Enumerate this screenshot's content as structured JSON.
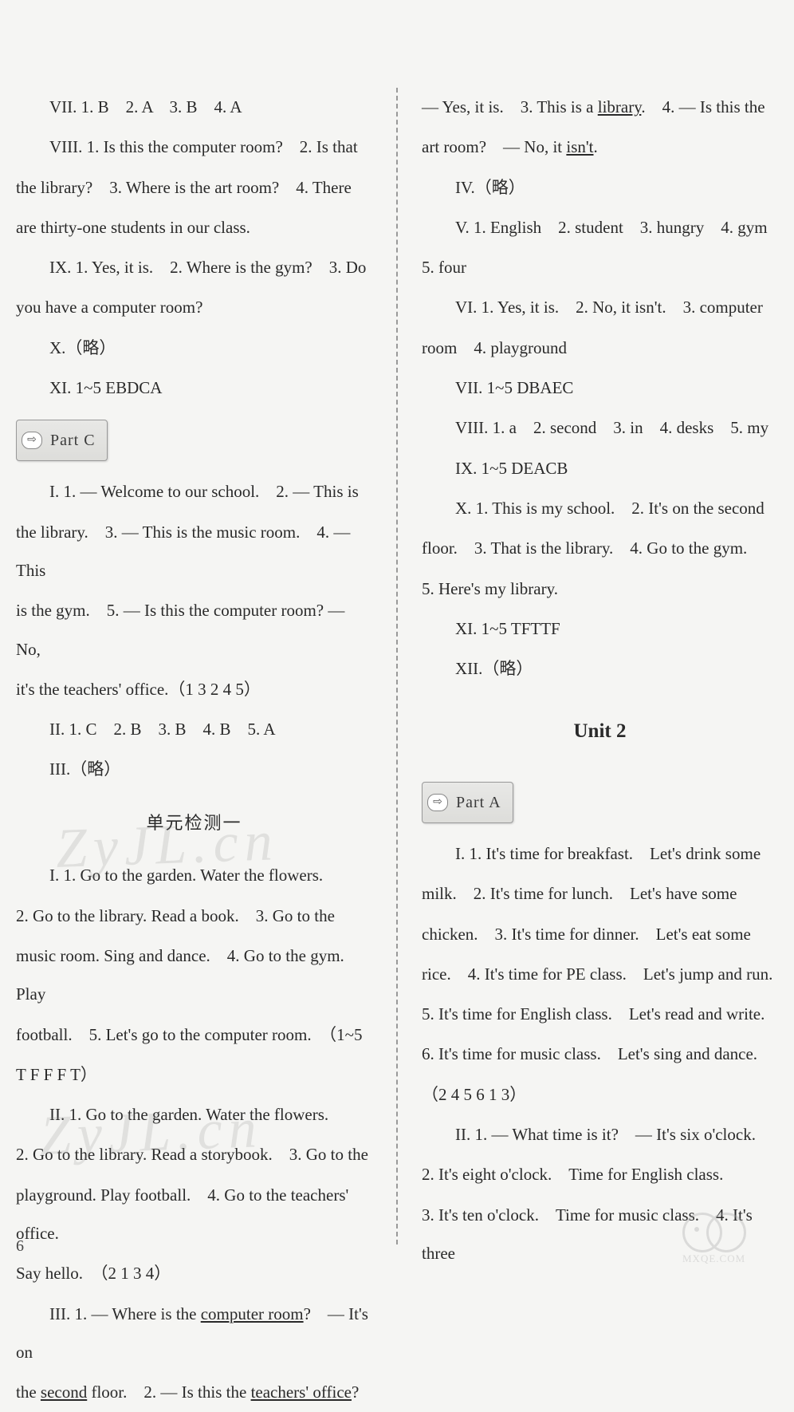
{
  "left_column": {
    "lines": [
      {
        "cls": "text-line",
        "t": "VII. 1. B　2. A　3. B　4. A"
      },
      {
        "cls": "text-line",
        "t": "VIII. 1. Is this the computer room?　2. Is that"
      },
      {
        "cls": "text-line-flush",
        "t": "the library?　3. Where is the art room?　4. There"
      },
      {
        "cls": "text-line-flush",
        "t": "are thirty-one students in our class."
      },
      {
        "cls": "text-line",
        "t": "IX. 1. Yes, it is.　2. Where is the gym?　3. Do"
      },
      {
        "cls": "text-line-flush",
        "t": "you have a computer room?"
      },
      {
        "cls": "text-line",
        "t": "X.（略）"
      },
      {
        "cls": "text-line",
        "t": "XI. 1~5 EBDCA"
      }
    ],
    "part_c_label": "Part C",
    "part_c_lines": [
      {
        "cls": "text-line",
        "t": "I. 1. — Welcome to our school.　2. — This is"
      },
      {
        "cls": "text-line-flush",
        "t": "the library.　3. — This is the music room.　4. — This"
      },
      {
        "cls": "text-line-flush",
        "t": "is the gym.　5. — Is this the computer room? — No,"
      },
      {
        "cls": "text-line-flush",
        "t": "it's the teachers' office.（1 3 2 4 5）"
      },
      {
        "cls": "text-line",
        "t": "II. 1. C　2. B　3. B　4. B　5. A"
      },
      {
        "cls": "text-line",
        "t": "III.（略）"
      }
    ],
    "section_title": "单元检测一",
    "section_lines": [
      {
        "cls": "text-line",
        "t": "I. 1. Go to the garden. Water the flowers."
      },
      {
        "cls": "text-line-flush",
        "t": "2. Go to the library. Read a book.　3. Go to the"
      },
      {
        "cls": "text-line-flush",
        "t": "music room. Sing and dance.　4. Go to the gym. Play"
      },
      {
        "cls": "text-line-flush",
        "t": "football.　5. Let's go to the computer room.　（1~5"
      },
      {
        "cls": "text-line-flush",
        "t": "T F F F T）"
      },
      {
        "cls": "text-line",
        "t": "II. 1. Go to the garden. Water the flowers."
      },
      {
        "cls": "text-line-flush",
        "t": "2. Go to the library. Read a storybook.　3. Go to the"
      },
      {
        "cls": "text-line-flush",
        "t": "playground. Play football.　4. Go to the teachers' office."
      },
      {
        "cls": "text-line-flush",
        "t": "Say hello.　（2 1 3 4）"
      }
    ],
    "iii_prefix": "III. 1. — Where is the ",
    "iii_u1": "computer room",
    "iii_mid1": "?　— It's on",
    "iii_line2a": "the ",
    "iii_u2": "second",
    "iii_line2b": " floor.　2. — Is this the ",
    "iii_u3": "teachers' office",
    "iii_line2c": "?"
  },
  "right_column": {
    "top_a": "— Yes, it is.　3. This is a ",
    "top_u1": "library",
    "top_b": ".　4. — Is this the",
    "top_line2a": "art room?　— No, it ",
    "top_u2": "isn't",
    "top_line2b": ".",
    "lines": [
      {
        "cls": "text-line",
        "t": "IV.（略）"
      },
      {
        "cls": "text-line",
        "t": "V. 1. English　2. student　3. hungry　4. gym"
      },
      {
        "cls": "text-line-flush",
        "t": "5. four"
      },
      {
        "cls": "text-line",
        "t": "VI. 1. Yes, it is.　2. No, it isn't.　3. computer"
      },
      {
        "cls": "text-line-flush",
        "t": "room　4. playground"
      },
      {
        "cls": "text-line",
        "t": "VII. 1~5 DBAEC"
      },
      {
        "cls": "text-line",
        "t": "VIII. 1. a　2. second　3. in　4. desks　5. my"
      },
      {
        "cls": "text-line",
        "t": "IX. 1~5 DEACB"
      },
      {
        "cls": "text-line",
        "t": "X. 1. This is my school.　2. It's on the second"
      },
      {
        "cls": "text-line-flush",
        "t": "floor.　3. That is the library.　4. Go to the gym."
      },
      {
        "cls": "text-line-flush",
        "t": "5. Here's my library."
      },
      {
        "cls": "text-line",
        "t": "XI. 1~5 TFTTF"
      },
      {
        "cls": "text-line",
        "t": "XII.（略）"
      }
    ],
    "unit_title": "Unit 2",
    "part_a_label": "Part A",
    "part_a_lines": [
      {
        "cls": "text-line",
        "t": "I. 1. It's time for breakfast.　Let's drink some"
      },
      {
        "cls": "text-line-flush",
        "t": "milk.　2. It's time for lunch.　Let's have some"
      },
      {
        "cls": "text-line-flush",
        "t": "chicken.　3. It's time for dinner.　Let's eat some"
      },
      {
        "cls": "text-line-flush",
        "t": "rice.　4. It's time for PE class.　Let's jump and run."
      },
      {
        "cls": "text-line-flush",
        "t": "5. It's time for English class.　Let's read and write."
      },
      {
        "cls": "text-line-flush",
        "t": "6. It's time for music class.　Let's sing and dance."
      },
      {
        "cls": "text-line-flush",
        "t": "（2 4 5 6 1 3）"
      },
      {
        "cls": "text-line",
        "t": "II. 1. — What time is it?　— It's six o'clock."
      },
      {
        "cls": "text-line-flush",
        "t": "2. It's eight o'clock.　Time for English class."
      },
      {
        "cls": "text-line-flush",
        "t": "3. It's ten o'clock.　Time for music class.　4. It's three"
      }
    ]
  },
  "page_number": "6",
  "watermark_brand": "MXQE.COM",
  "watermark_script": "ZyJL.cn"
}
